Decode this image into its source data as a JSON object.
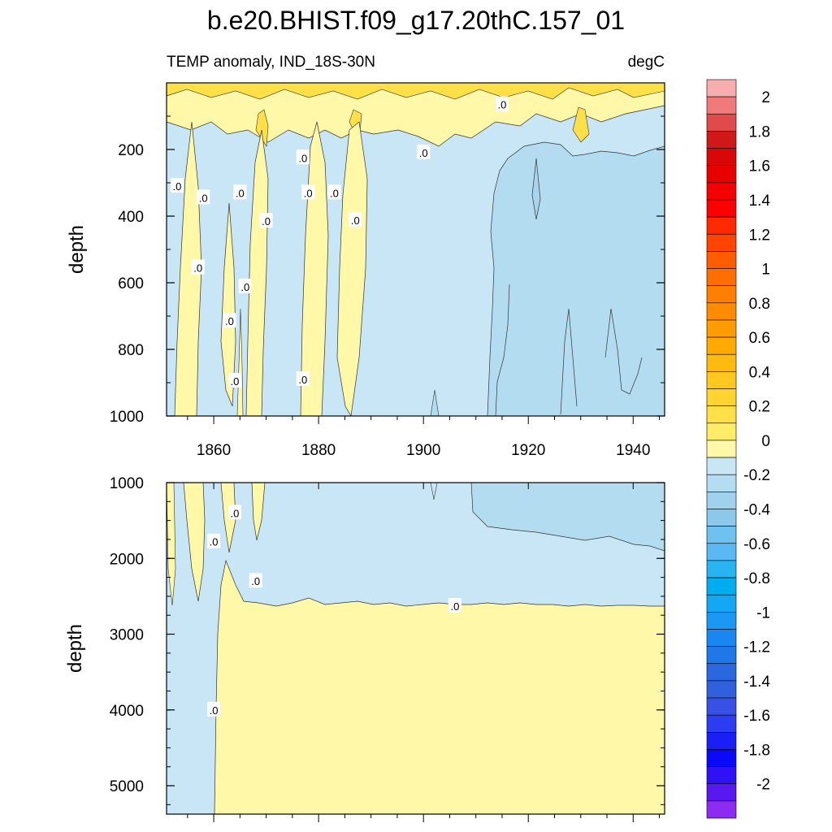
{
  "chart_data": [
    {
      "type": "heatmap",
      "panel": "upper",
      "title": "b.e20.BHIST.f09_g17.20thC.157_01",
      "left_string": "TEMP anomaly, IND_18S-30N",
      "right_string": "degC",
      "ylabel": "depth",
      "xlim": [
        1851,
        1946
      ],
      "ylim": [
        0,
        1000
      ],
      "y_reversed": true,
      "x_ticks": [
        1860,
        1880,
        1900,
        1920,
        1940
      ],
      "y_ticks": [
        200,
        400,
        600,
        800,
        1000
      ],
      "contour_labels": [
        {
          "text": ".0",
          "x": 1853,
          "y": 310
        },
        {
          "text": ".0",
          "x": 1858,
          "y": 345
        },
        {
          "text": ".0",
          "x": 1857,
          "y": 555
        },
        {
          "text": ".0",
          "x": 1863,
          "y": 715
        },
        {
          "text": ".0",
          "x": 1864,
          "y": 895
        },
        {
          "text": ".0",
          "x": 1865,
          "y": 330
        },
        {
          "text": ".0",
          "x": 1866,
          "y": 612
        },
        {
          "text": ".0",
          "x": 1870,
          "y": 415
        },
        {
          "text": ".0",
          "x": 1877,
          "y": 225
        },
        {
          "text": ".0",
          "x": 1878,
          "y": 330
        },
        {
          "text": ".0",
          "x": 1877,
          "y": 890
        },
        {
          "text": ".0",
          "x": 1883,
          "y": 330
        },
        {
          "text": ".0",
          "x": 1887,
          "y": 412
        },
        {
          "text": ".0",
          "x": 1900,
          "y": 210
        },
        {
          "text": ".0",
          "x": 1915,
          "y": 65
        }
      ]
    },
    {
      "type": "heatmap",
      "panel": "lower",
      "ylabel": "depth",
      "xlim": [
        1851,
        1946
      ],
      "ylim": [
        1000,
        5375
      ],
      "y_reversed": true,
      "y_ticks": [
        1000,
        2000,
        3000,
        4000,
        5000
      ],
      "contour_labels": [
        {
          "text": ".0",
          "x": 1860,
          "y": 1780
        },
        {
          "text": ".0",
          "x": 1864,
          "y": 1400
        },
        {
          "text": ".0",
          "x": 1868,
          "y": 2300
        },
        {
          "text": ".0",
          "x": 1906,
          "y": 2630
        },
        {
          "text": ".0",
          "x": 1860,
          "y": 4000
        }
      ]
    }
  ],
  "colorbar": {
    "labels": [
      "2",
      "1.8",
      "1.6",
      "1.4",
      "1.2",
      "1",
      "0.8",
      "0.6",
      "0.4",
      "0.2",
      "0",
      "-0.2",
      "-0.4",
      "-0.6",
      "-0.8",
      "-1",
      "-1.2",
      "-1.4",
      "-1.6",
      "-1.8",
      "-2"
    ],
    "colors": [
      "#f8aeae",
      "#f07a7a",
      "#e04a4a",
      "#d01818",
      "#d80808",
      "#e80000",
      "#f40000",
      "#ff0000",
      "#ff2a00",
      "#ff4400",
      "#ff5c00",
      "#ff6e00",
      "#ff8000",
      "#ff8c00",
      "#ff9c00",
      "#ffaa00",
      "#ffba10",
      "#ffc820",
      "#ffd430",
      "#ffe048",
      "#ffec68",
      "#fff8a8",
      "#c8e6f6",
      "#b4dcf2",
      "#a0d2ee",
      "#8cc8ea",
      "#6ec2f0",
      "#5ab8f2",
      "#28b4f0",
      "#00aef0",
      "#14a8f4",
      "#1a98f4",
      "#1a86f0",
      "#2078e8",
      "#2a68e0",
      "#3060dc",
      "#3850e4",
      "#2c3cf0",
      "#1a20f4",
      "#0a0af8",
      "#3010f4",
      "#5a18f0",
      "#8c2cf0"
    ]
  }
}
